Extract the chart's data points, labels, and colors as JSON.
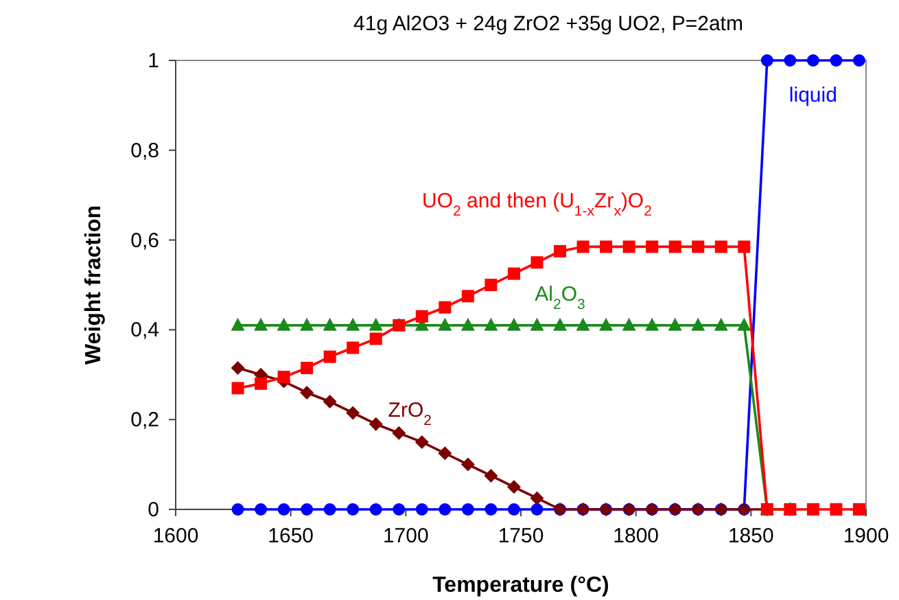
{
  "chart_data": {
    "type": "line",
    "title": "41g Al2O3 + 24g ZrO2 +35g UO2, P=2atm",
    "xlabel": "Temperature (°C)",
    "ylabel": "Weight fraction",
    "x": [
      1627,
      1637,
      1647,
      1657,
      1667,
      1677,
      1687,
      1697,
      1707,
      1717,
      1727,
      1737,
      1747,
      1757,
      1767,
      1777,
      1787,
      1797,
      1807,
      1817,
      1827,
      1837,
      1847,
      1857,
      1867,
      1877,
      1887,
      1897
    ],
    "series": [
      {
        "name": "liquid",
        "color": "#0000ff",
        "marker": "circle",
        "values": [
          0,
          0,
          0,
          0,
          0,
          0,
          0,
          0,
          0,
          0,
          0,
          0,
          0,
          0,
          0,
          0,
          0,
          0,
          0,
          0,
          0,
          0,
          0,
          1,
          1,
          1,
          1,
          1
        ]
      },
      {
        "name": "ZrO$_{2}$",
        "color": "#7b0000",
        "marker": "diamond",
        "values": [
          0.315,
          0.3,
          0.285,
          0.26,
          0.24,
          0.215,
          0.19,
          0.17,
          0.15,
          0.125,
          0.1,
          0.075,
          0.05,
          0.025,
          0,
          0,
          0,
          0,
          0,
          0,
          0,
          0,
          0,
          0,
          0,
          null,
          null,
          null
        ]
      },
      {
        "name": "Al$_{2}$O$_{3}$",
        "color": "#1a8a1a",
        "marker": "triangle",
        "values": [
          0.41,
          0.41,
          0.41,
          0.41,
          0.41,
          0.41,
          0.41,
          0.41,
          0.41,
          0.41,
          0.41,
          0.41,
          0.41,
          0.41,
          0.41,
          0.41,
          0.41,
          0.41,
          0.41,
          0.41,
          0.41,
          0.41,
          0.41,
          0,
          0,
          null,
          null,
          null
        ]
      },
      {
        "name": "UO$_{2}$ and then (U$_{1-x}$Zr$_{x}$)O$_{2}$",
        "color": "#ff0000",
        "marker": "square",
        "values": [
          0.27,
          0.28,
          0.295,
          0.315,
          0.34,
          0.36,
          0.38,
          0.41,
          0.43,
          0.45,
          0.475,
          0.5,
          0.525,
          0.55,
          0.575,
          0.585,
          0.585,
          0.585,
          0.585,
          0.585,
          0.585,
          0.585,
          0.585,
          0,
          0,
          0,
          0,
          0
        ]
      }
    ],
    "xlim": [
      1600,
      1900
    ],
    "xticks": [
      1600,
      1650,
      1700,
      1750,
      1800,
      1850,
      1900
    ],
    "ylim": [
      0,
      1
    ],
    "yticks": [
      0,
      {
        "value": 0.2,
        "label": "0,2"
      },
      {
        "value": 0.4,
        "label": "0,4"
      },
      {
        "value": 0.6,
        "label": "0,6"
      },
      {
        "value": 0.8,
        "label": "0,8"
      },
      1
    ],
    "grid": false
  }
}
